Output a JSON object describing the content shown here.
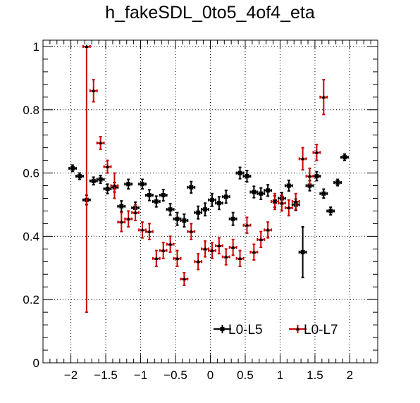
{
  "chart_data": {
    "type": "scatter",
    "title": "h_fakeSDL_0to5_4of4_eta",
    "xlim": [
      -2.4,
      2.4
    ],
    "ylim": [
      0,
      1.02
    ],
    "xticks": [
      -2,
      -1.5,
      -1,
      -0.5,
      0,
      0.5,
      1,
      1.5,
      2
    ],
    "xtick_labels": [
      "−2",
      "−1.5",
      "−1",
      "−0.5",
      "0",
      "0.5",
      "1",
      "1.5",
      "2"
    ],
    "yticks": [
      0,
      0.2,
      0.4,
      0.6,
      0.8,
      1
    ],
    "ytick_labels": [
      "0",
      "0.2",
      "0.4",
      "0.6",
      "0.8",
      "1"
    ],
    "grid": true,
    "legend_position": "bottom-right",
    "series": [
      {
        "name": "L0-L5",
        "color": "#000000",
        "points": [
          {
            "x": -1.975,
            "y": 0.615,
            "err": 0.01
          },
          {
            "x": -1.875,
            "y": 0.59,
            "err": 0.01
          },
          {
            "x": -1.775,
            "y": 0.515,
            "err": 0.015
          },
          {
            "x": -1.675,
            "y": 0.575,
            "err": 0.012
          },
          {
            "x": -1.575,
            "y": 0.58,
            "err": 0.012
          },
          {
            "x": -1.475,
            "y": 0.55,
            "err": 0.015
          },
          {
            "x": -1.375,
            "y": 0.555,
            "err": 0.015
          },
          {
            "x": -1.275,
            "y": 0.495,
            "err": 0.017
          },
          {
            "x": -1.175,
            "y": 0.565,
            "err": 0.015
          },
          {
            "x": -1.075,
            "y": 0.49,
            "err": 0.018
          },
          {
            "x": -0.975,
            "y": 0.565,
            "err": 0.015
          },
          {
            "x": -0.875,
            "y": 0.53,
            "err": 0.017
          },
          {
            "x": -0.775,
            "y": 0.51,
            "err": 0.017
          },
          {
            "x": -0.675,
            "y": 0.53,
            "err": 0.018
          },
          {
            "x": -0.575,
            "y": 0.485,
            "err": 0.018
          },
          {
            "x": -0.475,
            "y": 0.455,
            "err": 0.02
          },
          {
            "x": -0.375,
            "y": 0.45,
            "err": 0.02
          },
          {
            "x": -0.275,
            "y": 0.555,
            "err": 0.018
          },
          {
            "x": -0.175,
            "y": 0.475,
            "err": 0.02
          },
          {
            "x": -0.075,
            "y": 0.485,
            "err": 0.02
          },
          {
            "x": 0.025,
            "y": 0.515,
            "err": 0.02
          },
          {
            "x": 0.125,
            "y": 0.505,
            "err": 0.02
          },
          {
            "x": 0.225,
            "y": 0.525,
            "err": 0.02
          },
          {
            "x": 0.325,
            "y": 0.455,
            "err": 0.02
          },
          {
            "x": 0.425,
            "y": 0.6,
            "err": 0.018
          },
          {
            "x": 0.525,
            "y": 0.59,
            "err": 0.018
          },
          {
            "x": 0.625,
            "y": 0.54,
            "err": 0.018
          },
          {
            "x": 0.725,
            "y": 0.535,
            "err": 0.018
          },
          {
            "x": 0.825,
            "y": 0.545,
            "err": 0.018
          },
          {
            "x": 0.925,
            "y": 0.51,
            "err": 0.018
          },
          {
            "x": 1.025,
            "y": 0.52,
            "err": 0.018
          },
          {
            "x": 1.125,
            "y": 0.56,
            "err": 0.017
          },
          {
            "x": 1.225,
            "y": 0.5,
            "err": 0.018
          },
          {
            "x": 1.325,
            "y": 0.35,
            "err": 0.08
          },
          {
            "x": 1.425,
            "y": 0.56,
            "err": 0.016
          },
          {
            "x": 1.525,
            "y": 0.59,
            "err": 0.014
          },
          {
            "x": 1.625,
            "y": 0.535,
            "err": 0.014
          },
          {
            "x": 1.725,
            "y": 0.48,
            "err": 0.012
          },
          {
            "x": 1.825,
            "y": 0.57,
            "err": 0.01
          },
          {
            "x": 1.925,
            "y": 0.65,
            "err": 0.01
          }
        ]
      },
      {
        "name": "L0-L7",
        "color": "#cc0000",
        "points": [
          {
            "x": -1.775,
            "y": 1.0,
            "err": 0.0,
            "errlo": 0.84
          },
          {
            "x": -1.675,
            "y": 0.86,
            "err": 0.035
          },
          {
            "x": -1.575,
            "y": 0.695,
            "err": 0.02
          },
          {
            "x": -1.475,
            "y": 0.62,
            "err": 0.02
          },
          {
            "x": -1.375,
            "y": 0.56,
            "err": 0.04
          },
          {
            "x": -1.275,
            "y": 0.445,
            "err": 0.03
          },
          {
            "x": -1.175,
            "y": 0.455,
            "err": 0.025
          },
          {
            "x": -1.075,
            "y": 0.475,
            "err": 0.025
          },
          {
            "x": -0.975,
            "y": 0.42,
            "err": 0.025
          },
          {
            "x": -0.875,
            "y": 0.415,
            "err": 0.025
          },
          {
            "x": -0.775,
            "y": 0.33,
            "err": 0.025
          },
          {
            "x": -0.675,
            "y": 0.355,
            "err": 0.025
          },
          {
            "x": -0.575,
            "y": 0.375,
            "err": 0.025
          },
          {
            "x": -0.475,
            "y": 0.33,
            "err": 0.025
          },
          {
            "x": -0.375,
            "y": 0.265,
            "err": 0.02
          },
          {
            "x": -0.275,
            "y": 0.415,
            "err": 0.025
          },
          {
            "x": -0.175,
            "y": 0.32,
            "err": 0.025
          },
          {
            "x": -0.075,
            "y": 0.36,
            "err": 0.025
          },
          {
            "x": 0.025,
            "y": 0.355,
            "err": 0.025
          },
          {
            "x": 0.125,
            "y": 0.37,
            "err": 0.025
          },
          {
            "x": 0.225,
            "y": 0.335,
            "err": 0.025
          },
          {
            "x": 0.325,
            "y": 0.365,
            "err": 0.025
          },
          {
            "x": 0.425,
            "y": 0.33,
            "err": 0.025
          },
          {
            "x": 0.525,
            "y": 0.435,
            "err": 0.025
          },
          {
            "x": 0.625,
            "y": 0.35,
            "err": 0.025
          },
          {
            "x": 0.725,
            "y": 0.39,
            "err": 0.025
          },
          {
            "x": 0.825,
            "y": 0.42,
            "err": 0.025
          },
          {
            "x": 0.925,
            "y": 0.51,
            "err": 0.025
          },
          {
            "x": 1.025,
            "y": 0.505,
            "err": 0.025
          },
          {
            "x": 1.125,
            "y": 0.49,
            "err": 0.025
          },
          {
            "x": 1.225,
            "y": 0.51,
            "err": 0.025
          },
          {
            "x": 1.325,
            "y": 0.645,
            "err": 0.035
          },
          {
            "x": 1.425,
            "y": 0.59,
            "err": 0.025
          },
          {
            "x": 1.525,
            "y": 0.665,
            "err": 0.025
          },
          {
            "x": 1.625,
            "y": 0.84,
            "err": 0.055
          }
        ]
      }
    ]
  }
}
